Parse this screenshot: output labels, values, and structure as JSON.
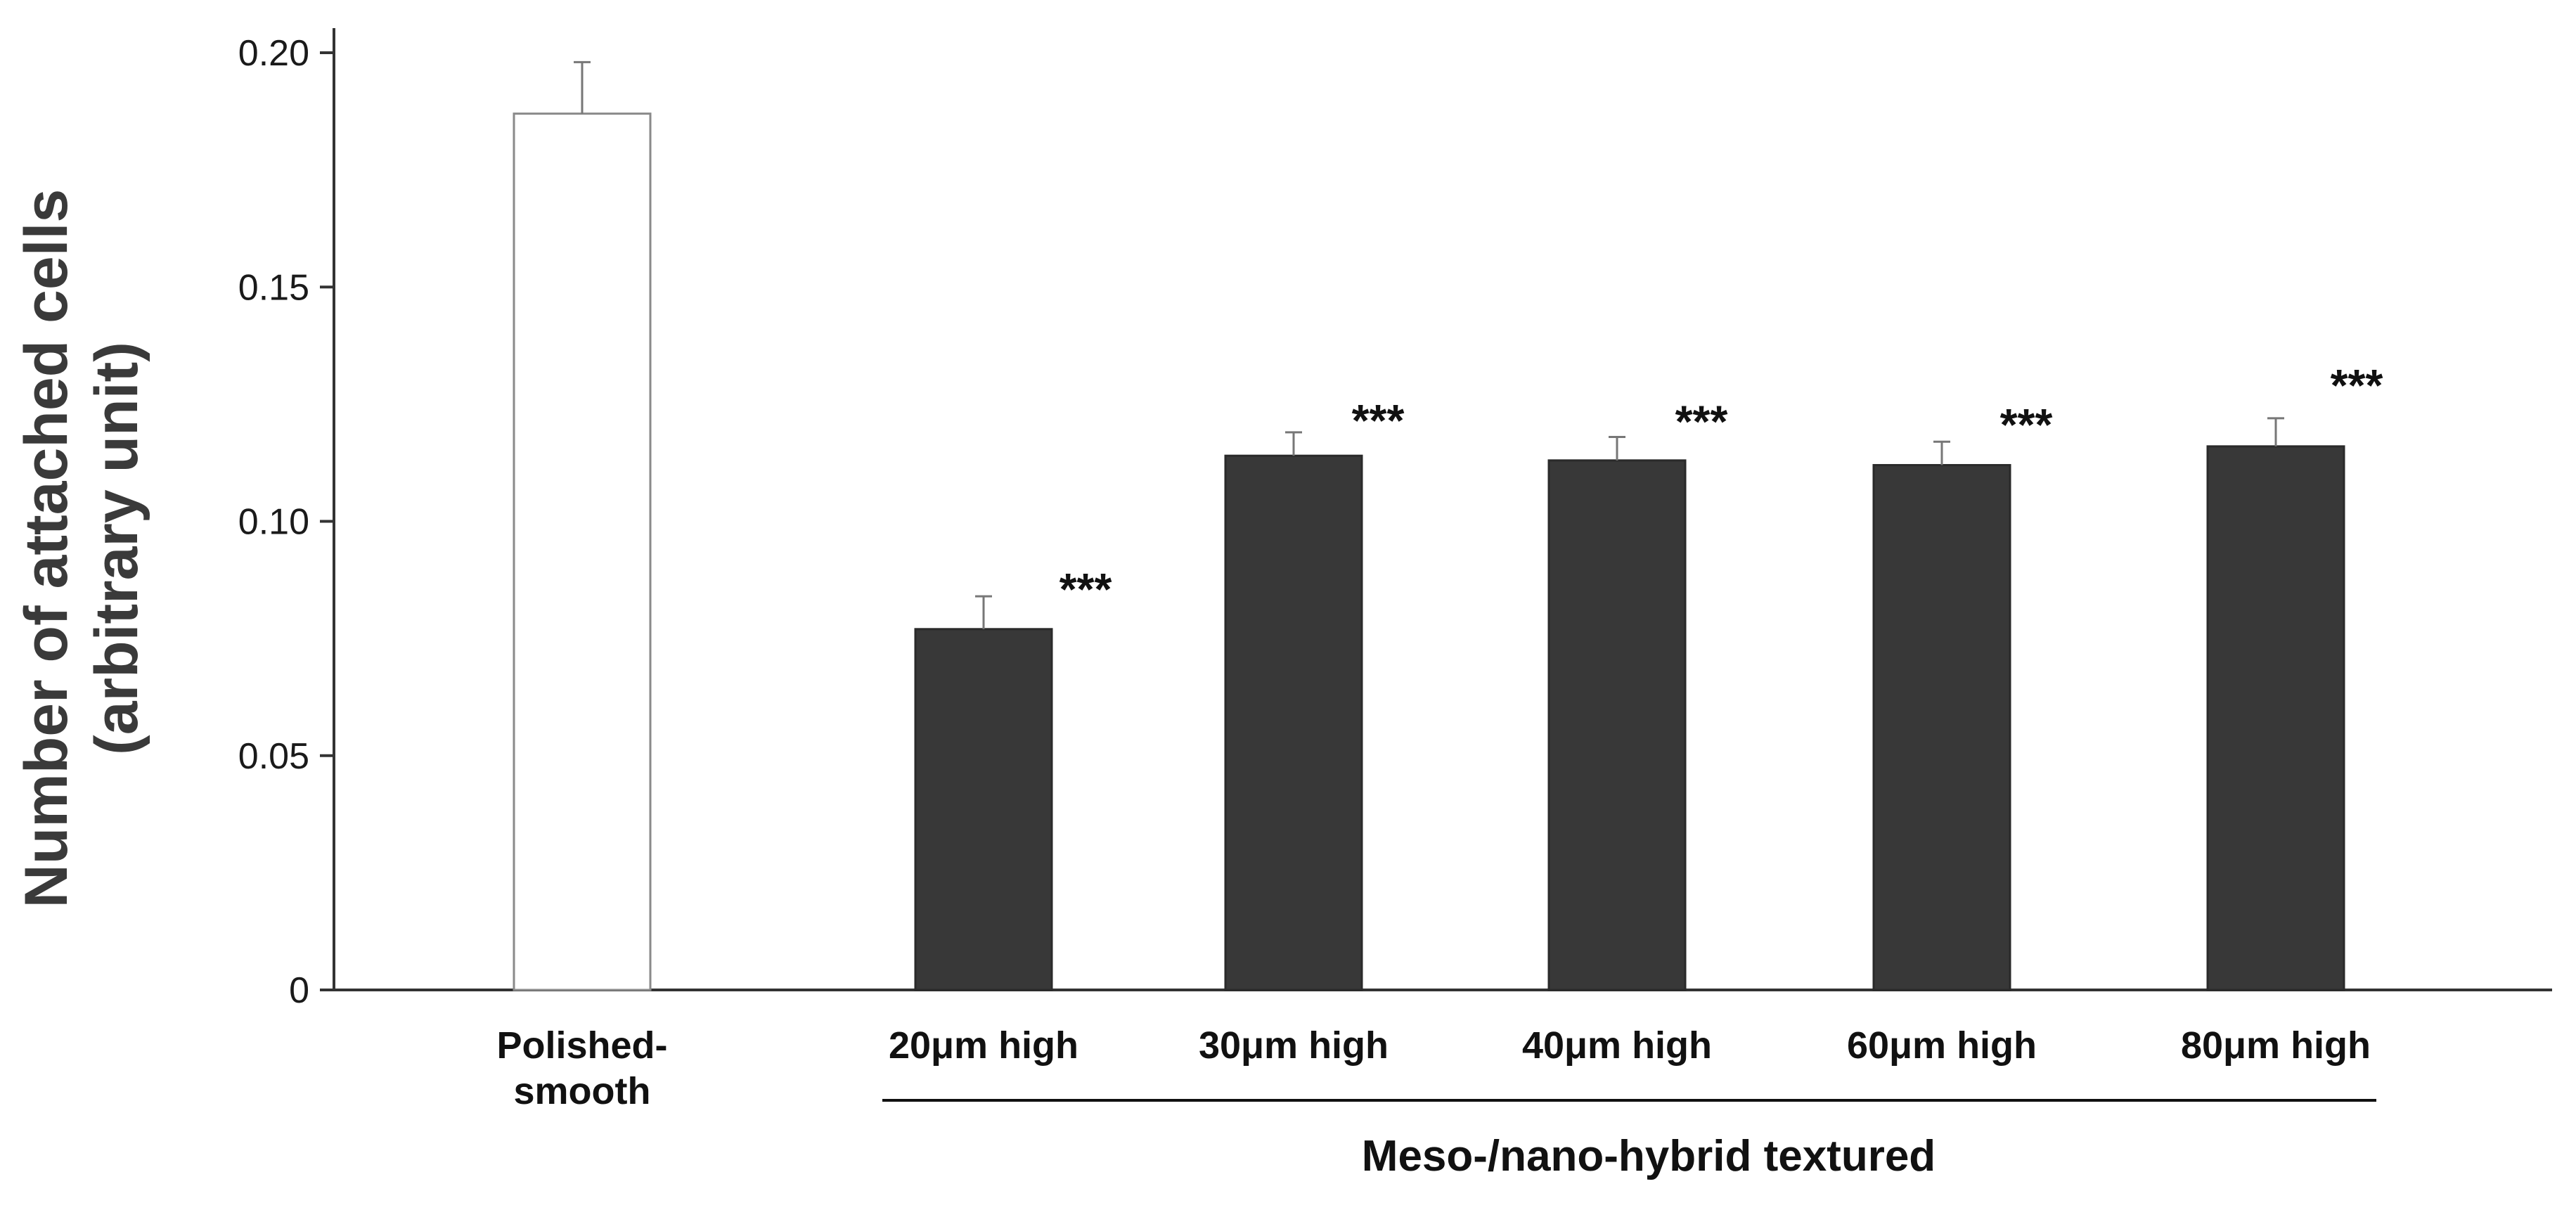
{
  "chart_data": {
    "type": "bar",
    "title": "",
    "ylabel_lines": [
      "Number of attached cells",
      "(arbitrary unit)"
    ],
    "xlabel": "",
    "ylim": [
      0,
      0.2
    ],
    "yticks": [
      {
        "value": 0,
        "label": "0"
      },
      {
        "value": 0.05,
        "label": "0.05"
      },
      {
        "value": 0.1,
        "label": "0.10"
      },
      {
        "value": 0.15,
        "label": "0.15"
      },
      {
        "value": 0.2,
        "label": "0.20"
      }
    ],
    "categories": [
      {
        "label_lines": [
          "Polished-",
          "smooth"
        ],
        "value": 0.187,
        "error": 0.011,
        "significance": "",
        "fill": "#ffffff"
      },
      {
        "label_lines": [
          "20μm high"
        ],
        "value": 0.077,
        "error": 0.007,
        "significance": "***",
        "fill": "#383838"
      },
      {
        "label_lines": [
          "30μm high"
        ],
        "value": 0.114,
        "error": 0.005,
        "significance": "***",
        "fill": "#383838"
      },
      {
        "label_lines": [
          "40μm high"
        ],
        "value": 0.113,
        "error": 0.005,
        "significance": "***",
        "fill": "#383838"
      },
      {
        "label_lines": [
          "60μm high"
        ],
        "value": 0.112,
        "error": 0.005,
        "significance": "***",
        "fill": "#383838"
      },
      {
        "label_lines": [
          "80μm high"
        ],
        "value": 0.116,
        "error": 0.006,
        "significance": "***",
        "fill": "#383838"
      }
    ],
    "group_label": "Meso-/nano-hybrid textured",
    "grid": false,
    "legend": "none"
  }
}
